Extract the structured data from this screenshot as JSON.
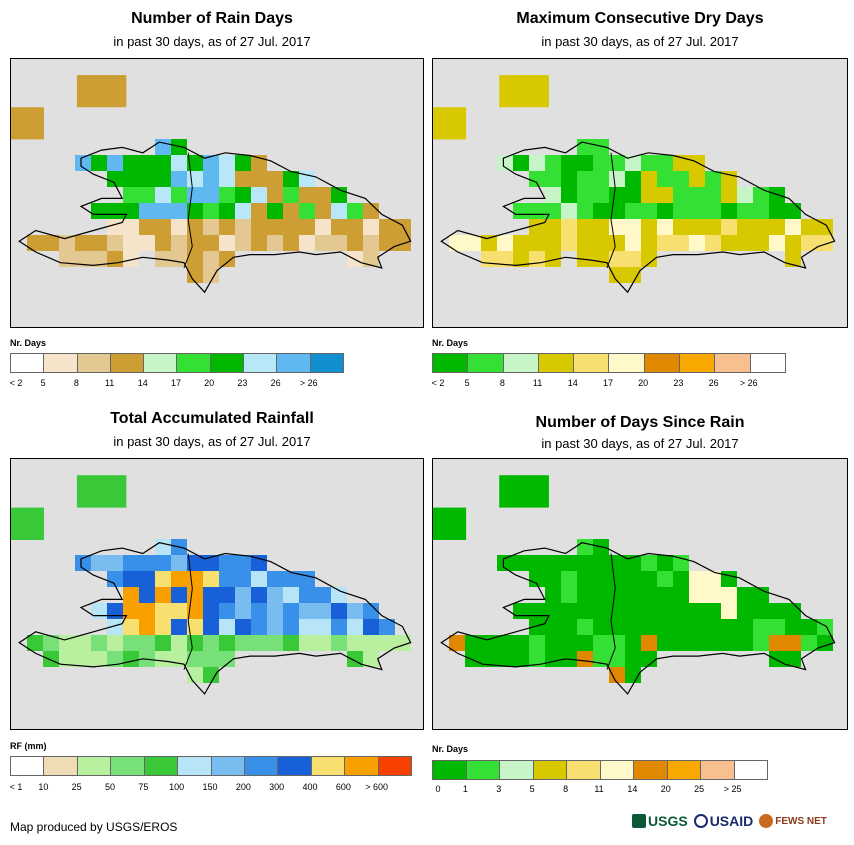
{
  "panels": [
    {
      "title": "Number of Rain Days",
      "subtitle": "in past 30 days, as of 27 Jul. 2017",
      "legend_title": "Nr. Days",
      "legend_labels": [
        "< 2",
        "5",
        "8",
        "11",
        "14",
        "17",
        "20",
        "23",
        "26",
        "> 26"
      ],
      "legend_colors": [
        "#ffffff",
        "#f5e4c9",
        "#e3c891",
        "#cc9e33",
        "#c8f5c8",
        "#33e033",
        "#00b800",
        "#b8e8f8",
        "#60b8f0",
        "#1090d0"
      ],
      "mode": "raindays"
    },
    {
      "title": "Maximum Consecutive Dry Days",
      "subtitle": "in past 30 days, as of 27 Jul. 2017",
      "legend_title": "Nr. Days",
      "legend_labels": [
        "< 2",
        "5",
        "8",
        "11",
        "14",
        "17",
        "20",
        "23",
        "26",
        "> 26"
      ],
      "legend_colors": [
        "#00b800",
        "#33e033",
        "#c8f5c8",
        "#d8c800",
        "#f8e070",
        "#fff8c8",
        "#e08800",
        "#f8a800",
        "#f8c090",
        "#ffffff"
      ],
      "mode": "drydays"
    },
    {
      "title": "Total Accumulated Rainfall",
      "subtitle": "in past 30 days, as of 27 Jul. 2017",
      "legend_title": "RF (mm)",
      "legend_labels": [
        "< 1",
        "10",
        "25",
        "50",
        "75",
        "100",
        "150",
        "200",
        "300",
        "400",
        "600",
        "> 600"
      ],
      "legend_colors": [
        "#ffffff",
        "#f0dcb4",
        "#b8f0a0",
        "#78e078",
        "#38c838",
        "#b8e4f8",
        "#78bcf0",
        "#3890e8",
        "#1860d8",
        "#f8e070",
        "#f8a000",
        "#f84000"
      ],
      "mode": "rainfall"
    },
    {
      "title": "Number of Days Since Rain",
      "subtitle": "in past 30 days, as of 27 Jul. 2017",
      "legend_title": "Nr. Days",
      "legend_labels": [
        "0",
        "1",
        "3",
        "5",
        "8",
        "11",
        "14",
        "20",
        "25",
        "> 25"
      ],
      "legend_colors": [
        "#00b800",
        "#33e033",
        "#c8f5c8",
        "#d8c800",
        "#f8e070",
        "#fff8c8",
        "#e08800",
        "#f8a800",
        "#f8c090",
        "#ffffff"
      ],
      "mode": "sincerain"
    }
  ],
  "credit": "Map produced by USGS/EROS",
  "logos": {
    "usgs": "USGS",
    "usaid": "USAID",
    "fews": "FEWS NET"
  }
}
